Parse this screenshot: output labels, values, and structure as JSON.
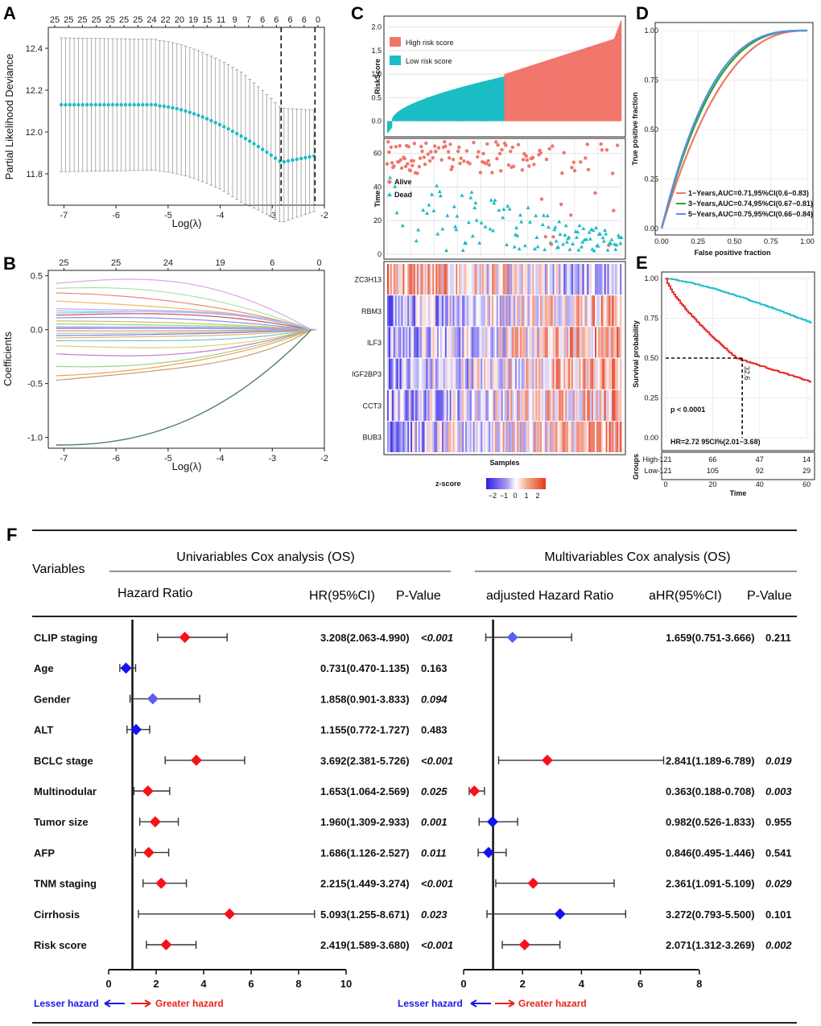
{
  "panel_labels": {
    "a": "A",
    "b": "B",
    "c": "C",
    "d": "D",
    "e": "E",
    "f": "F"
  },
  "colors": {
    "teal": "#1bbcc4",
    "salmon": "#f1756b",
    "red": "#e8231f",
    "blue": "#1a1ae8",
    "green": "#2ba52b",
    "rocblue": "#5b8ee8"
  },
  "chart_data": [
    {
      "id": "A",
      "type": "line",
      "xlabel": "Log(λ)",
      "ylabel": "Partial Likelihood Deviance",
      "xlim": [
        -7.3,
        -2.0
      ],
      "ylim": [
        11.65,
        12.5
      ],
      "xticks": [
        "-7",
        "-6",
        "-5",
        "-4",
        "-3",
        "-2"
      ],
      "yticks": [
        "11.8",
        "12.0",
        "12.2",
        "12.4"
      ],
      "top_ticks": [
        "25",
        "25",
        "25",
        "25",
        "25",
        "25",
        "25",
        "24",
        "22",
        "20",
        "19",
        "15",
        "11",
        "9",
        "7",
        "6",
        "6",
        "6",
        "6",
        "0"
      ],
      "lambda_min": -2.83,
      "lambda_1se": -2.18
    },
    {
      "id": "B",
      "type": "line",
      "xlabel": "Log(λ)",
      "ylabel": "Coefficients",
      "xlim": [
        -7.3,
        -2.0
      ],
      "ylim": [
        -1.1,
        0.55
      ],
      "xticks": [
        "-7",
        "-6",
        "-5",
        "-4",
        "-3",
        "-2"
      ],
      "yticks": [
        "-1.0",
        "-0.5",
        "0.0",
        "0.5"
      ],
      "top_ticks": [
        "25",
        "25",
        "24",
        "19",
        "6",
        "0"
      ]
    },
    {
      "id": "C",
      "type": "bar",
      "ylabel_top": "RiskScore",
      "ylabel_mid": "Time",
      "xlabel": "Samples",
      "yticks_top": [
        "0.0",
        "0.5",
        "1.0",
        "1.5",
        "2.0"
      ],
      "yticks_mid": [
        "0",
        "20",
        "40",
        "60"
      ],
      "legend": [
        "High risk score",
        "Low risk score"
      ],
      "status_legend": [
        "Alive",
        "Dead"
      ],
      "genes": [
        "ZC3H13",
        "RBM3",
        "ILF3",
        "IGF2BP3",
        "CCT3",
        "BUB3"
      ],
      "zscore_title": "z-score",
      "zscore_ticks": [
        "−2",
        "−1",
        "0",
        "1",
        "2"
      ]
    },
    {
      "id": "D",
      "type": "line",
      "xlabel": "False positive fraction",
      "ylabel": "True positive fraction",
      "xticks": [
        "0.00",
        "0.25",
        "0.50",
        "0.75",
        "1.00"
      ],
      "yticks": [
        "0.00",
        "0.25",
        "0.50",
        "0.75",
        "1.00"
      ],
      "series": [
        {
          "name": "1−Years,AUC=0.71,95%CI(0.6−0.83)",
          "auc": 0.71
        },
        {
          "name": "3−Years,AUC=0.74,95%CI(0.67−0.81)",
          "auc": 0.74
        },
        {
          "name": "5−Years,AUC=0.75,95%CI(0.66−0.84)",
          "auc": 0.75
        }
      ]
    },
    {
      "id": "E",
      "type": "line",
      "xlabel": "Time",
      "ylabel": "Survival probability",
      "groups_label": "Groups",
      "xticks": [
        "0",
        "20",
        "40",
        "60"
      ],
      "yticks": [
        "0.00",
        "0.25",
        "0.50",
        "0.75",
        "1.00"
      ],
      "pvalue": "p < 0.0001",
      "hr_text": "HR=2.72 95CI%(2.01−3.68)",
      "median_label": "32.6",
      "risk_table": [
        {
          "group": "High",
          "counts": [
            "121",
            "66",
            "47",
            "14"
          ]
        },
        {
          "group": "Low",
          "counts": [
            "121",
            "105",
            "92",
            "29"
          ]
        }
      ]
    },
    {
      "id": "F",
      "type": "forest",
      "variables_header": "Variables",
      "uni_title": "Univariables Cox analysis (OS)",
      "multi_title": "Multivariables Cox analysis (OS)",
      "uni_headers": [
        "Hazard Ratio",
        "HR(95%CI)",
        "P-Value"
      ],
      "multi_headers": [
        "adjusted Hazard Ratio",
        "aHR(95%CI)",
        "P-Value"
      ],
      "uni_xticks": [
        "0",
        "2",
        "4",
        "6",
        "8",
        "10"
      ],
      "multi_xticks": [
        "0",
        "2",
        "4",
        "6",
        "8"
      ],
      "lesser": "Lesser hazard",
      "greater": "Greater hazard",
      "rows": [
        {
          "name": "CLIP staging",
          "hr": 3.208,
          "lo": 2.063,
          "hi": 4.99,
          "hr_text": "3.208(2.063-4.990)",
          "p": "<0.001",
          "p_it": true,
          "uc": "red",
          "ahr": 1.659,
          "alo": 0.751,
          "ahi": 3.666,
          "ahr_text": "1.659(0.751-3.666)",
          "ap": "0.211",
          "ap_it": false,
          "mc": "lightblue"
        },
        {
          "name": "Age",
          "hr": 0.731,
          "lo": 0.47,
          "hi": 1.135,
          "hr_text": "0.731(0.470-1.135)",
          "p": "0.163",
          "p_it": false,
          "uc": "blue"
        },
        {
          "name": "Gender",
          "hr": 1.858,
          "lo": 0.901,
          "hi": 3.833,
          "hr_text": "1.858(0.901-3.833)",
          "p": "0.094",
          "p_it": true,
          "uc": "lightblue"
        },
        {
          "name": "ALT",
          "hr": 1.155,
          "lo": 0.772,
          "hi": 1.727,
          "hr_text": "1.155(0.772-1.727)",
          "p": "0.483",
          "p_it": false,
          "uc": "blue"
        },
        {
          "name": "BCLC stage",
          "hr": 3.692,
          "lo": 2.381,
          "hi": 5.726,
          "hr_text": "3.692(2.381-5.726)",
          "p": "<0.001",
          "p_it": true,
          "uc": "red",
          "ahr": 2.841,
          "alo": 1.189,
          "ahi": 6.789,
          "ahr_text": "2.841(1.189-6.789)",
          "ap": "0.019",
          "ap_it": true,
          "mc": "red"
        },
        {
          "name": "Multinodular",
          "hr": 1.653,
          "lo": 1.064,
          "hi": 2.569,
          "hr_text": "1.653(1.064-2.569)",
          "p": "0.025",
          "p_it": true,
          "uc": "red",
          "ahr": 0.363,
          "alo": 0.188,
          "ahi": 0.708,
          "ahr_text": "0.363(0.188-0.708)",
          "ap": "0.003",
          "ap_it": true,
          "mc": "red"
        },
        {
          "name": "Tumor size",
          "hr": 1.96,
          "lo": 1.309,
          "hi": 2.933,
          "hr_text": "1.960(1.309-2.933)",
          "p": "0.001",
          "p_it": true,
          "uc": "red",
          "ahr": 0.982,
          "alo": 0.526,
          "ahi": 1.833,
          "ahr_text": "0.982(0.526-1.833)",
          "ap": "0.955",
          "ap_it": false,
          "mc": "blue"
        },
        {
          "name": "AFP",
          "hr": 1.686,
          "lo": 1.126,
          "hi": 2.527,
          "hr_text": "1.686(1.126-2.527)",
          "p": "0.011",
          "p_it": true,
          "uc": "red",
          "ahr": 0.846,
          "alo": 0.495,
          "ahi": 1.446,
          "ahr_text": "0.846(0.495-1.446)",
          "ap": "0.541",
          "ap_it": false,
          "mc": "blue"
        },
        {
          "name": "TNM staging",
          "hr": 2.215,
          "lo": 1.449,
          "hi": 3.274,
          "hr_text": "2.215(1.449-3.274)",
          "p": "<0.001",
          "p_it": true,
          "uc": "red",
          "ahr": 2.361,
          "alo": 1.091,
          "ahi": 5.109,
          "ahr_text": "2.361(1.091-5.109)",
          "ap": "0.029",
          "ap_it": true,
          "mc": "red"
        },
        {
          "name": "Cirrhosis",
          "hr": 5.093,
          "lo": 1.255,
          "hi": 8.671,
          "hr_text": "5.093(1.255-8.671)",
          "p": "0.023",
          "p_it": true,
          "uc": "red",
          "ahr": 3.272,
          "alo": 0.793,
          "ahi": 5.5,
          "ahr_text": "3.272(0.793-5.500)",
          "ap": "0.101",
          "ap_it": false,
          "mc": "blue"
        },
        {
          "name": "Risk score",
          "hr": 2.419,
          "lo": 1.589,
          "hi": 3.68,
          "hr_text": "2.419(1.589-3.680)",
          "p": "<0.001",
          "p_it": true,
          "uc": "red",
          "ahr": 2.071,
          "alo": 1.312,
          "ahi": 3.269,
          "ahr_text": "2.071(1.312-3.269)",
          "ap": "0.002",
          "ap_it": true,
          "mc": "red"
        }
      ]
    }
  ]
}
